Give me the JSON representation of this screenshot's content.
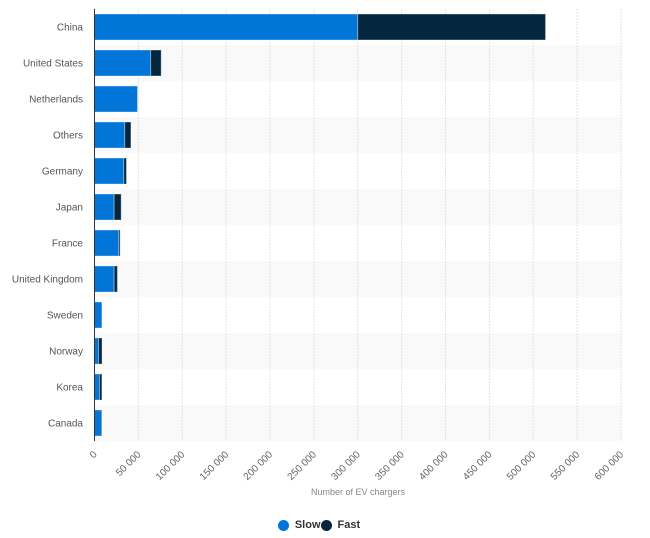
{
  "chart_data": {
    "type": "bar",
    "orientation": "horizontal",
    "stacked": true,
    "categories": [
      "China",
      "United States",
      "Netherlands",
      "Others",
      "Germany",
      "Japan",
      "France",
      "United Kingdom",
      "Sweden",
      "Norway",
      "Korea",
      "Canada"
    ],
    "series": [
      {
        "name": "Slow",
        "color": "#0275d8",
        "values": [
          300000,
          64000,
          49000,
          34500,
          33400,
          22400,
          27700,
          22400,
          8400,
          4600,
          5700,
          8000
        ]
      },
      {
        "name": "Fast",
        "color": "#04263f",
        "values": [
          214000,
          12000,
          0,
          7000,
          3000,
          8000,
          1500,
          3700,
          0,
          4000,
          2700,
          500
        ]
      }
    ],
    "xlabel": "Number of EV chargers",
    "xlim": [
      0,
      600000
    ],
    "xticks": [
      0,
      50000,
      100000,
      150000,
      200000,
      250000,
      300000,
      350000,
      400000,
      450000,
      500000,
      550000,
      600000
    ],
    "xtick_labels": [
      "0",
      "50 000",
      "100 000",
      "150 000",
      "200 000",
      "250 000",
      "300 000",
      "350 000",
      "400 000",
      "450 000",
      "500 000",
      "550 000",
      "600 000"
    ],
    "grid": true,
    "legend_position": "bottom"
  }
}
